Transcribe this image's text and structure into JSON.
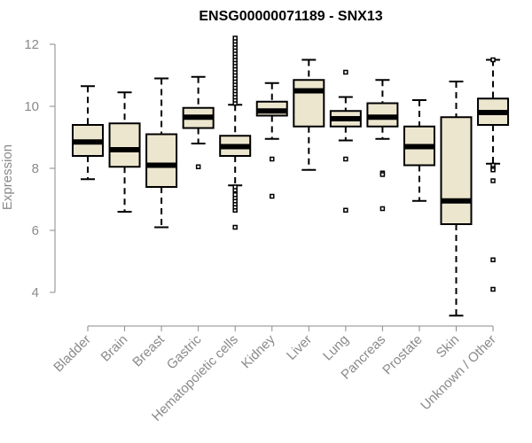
{
  "chart_data": {
    "type": "boxplot",
    "title": "ENSG00000071189 - SNX13",
    "xlabel": "",
    "ylabel": "Expression",
    "ylim": [
      3.2,
      12.2
    ],
    "yticks": [
      4,
      6,
      8,
      10,
      12
    ],
    "colors": {
      "box_fill": "#ede6cf",
      "stroke": "#000000",
      "axis": "#8a8a8a"
    },
    "categories": [
      "Bladder",
      "Brain",
      "Breast",
      "Gastric",
      "Hematopoietic cells",
      "Kidney",
      "Liver",
      "Lung",
      "Pancreas",
      "Prostate",
      "Skin",
      "Unknown / Other"
    ],
    "boxes": [
      {
        "name": "Bladder",
        "whisker_low": 7.65,
        "q1": 8.4,
        "median": 8.85,
        "q3": 9.4,
        "whisker_high": 10.65,
        "outliers": []
      },
      {
        "name": "Brain",
        "whisker_low": 6.6,
        "q1": 8.05,
        "median": 8.6,
        "q3": 9.45,
        "whisker_high": 10.45,
        "outliers": []
      },
      {
        "name": "Breast",
        "whisker_low": 6.1,
        "q1": 7.4,
        "median": 8.1,
        "q3": 9.1,
        "whisker_high": 10.9,
        "outliers": []
      },
      {
        "name": "Gastric",
        "whisker_low": 8.8,
        "q1": 9.3,
        "median": 9.65,
        "q3": 9.95,
        "whisker_high": 10.95,
        "outliers": [
          8.05
        ]
      },
      {
        "name": "Hematopoietic cells",
        "whisker_low": 7.45,
        "q1": 8.4,
        "median": 8.7,
        "q3": 9.05,
        "whisker_high": 10.05,
        "outliers": [
          6.1,
          6.65,
          6.75,
          6.85,
          6.95,
          7.05,
          7.15,
          7.3,
          7.4,
          10.1,
          10.2,
          10.3,
          10.4,
          10.5,
          10.6,
          10.7,
          10.8,
          10.9,
          11.0,
          11.1,
          11.2,
          11.3,
          11.4,
          11.5,
          11.6,
          11.7,
          11.8,
          11.9,
          12.0,
          12.1,
          12.2
        ]
      },
      {
        "name": "Kidney",
        "whisker_low": 8.95,
        "q1": 9.7,
        "median": 9.85,
        "q3": 10.15,
        "whisker_high": 10.75,
        "outliers": [
          8.3,
          7.1
        ]
      },
      {
        "name": "Liver",
        "whisker_low": 7.95,
        "q1": 9.35,
        "median": 10.5,
        "q3": 10.85,
        "whisker_high": 11.5,
        "outliers": []
      },
      {
        "name": "Lung",
        "whisker_low": 8.9,
        "q1": 9.35,
        "median": 9.6,
        "q3": 9.85,
        "whisker_high": 10.3,
        "outliers": [
          11.1,
          8.3,
          6.65
        ]
      },
      {
        "name": "Pancreas",
        "whisker_low": 8.95,
        "q1": 9.35,
        "median": 9.65,
        "q3": 10.1,
        "whisker_high": 10.85,
        "outliers": [
          7.85,
          7.8,
          6.7
        ]
      },
      {
        "name": "Prostate",
        "whisker_low": 6.95,
        "q1": 8.1,
        "median": 8.7,
        "q3": 9.35,
        "whisker_high": 10.2,
        "outliers": []
      },
      {
        "name": "Skin",
        "whisker_low": 3.25,
        "q1": 6.2,
        "median": 6.95,
        "q3": 9.65,
        "whisker_high": 10.8,
        "outliers": []
      },
      {
        "name": "Unknown / Other",
        "whisker_low": 8.15,
        "q1": 9.4,
        "median": 9.8,
        "q3": 10.25,
        "whisker_high": 11.5,
        "outliers": [
          11.5,
          8.1,
          8.0,
          7.95,
          7.6,
          5.05,
          4.1
        ]
      }
    ]
  }
}
